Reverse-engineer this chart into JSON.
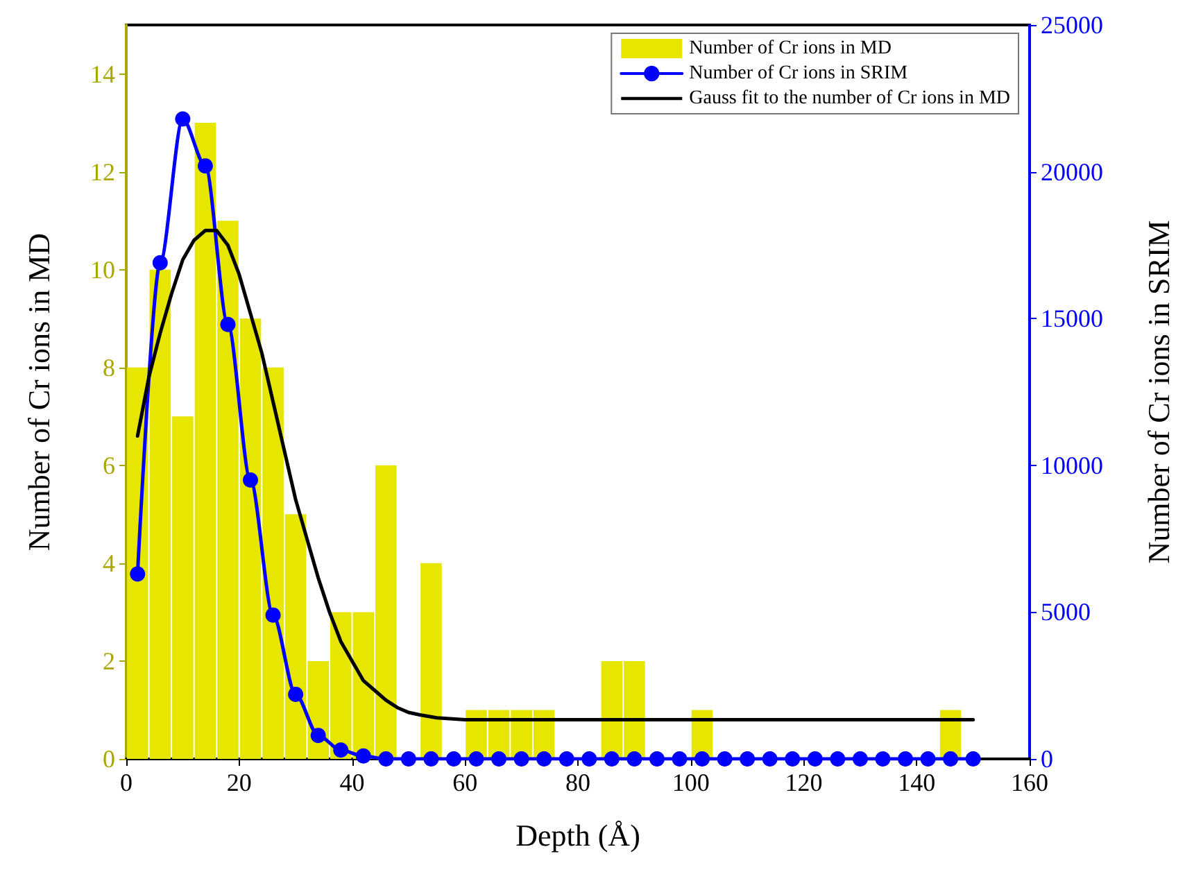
{
  "chart_data": {
    "type": "histogram",
    "xlabel": "Depth (Å)",
    "ylabel": "Number of Cr ions in MD",
    "y2label": "Number of Cr ions in SRIM",
    "bins": [
      0,
      4,
      8,
      12,
      16,
      20,
      24,
      28,
      32,
      36,
      40,
      44,
      48,
      52,
      56,
      60,
      64,
      68,
      72,
      76,
      80,
      84,
      88,
      92,
      96,
      100,
      104,
      108,
      112,
      116,
      120,
      124,
      128,
      132,
      136,
      140,
      144,
      148
    ],
    "series": [
      {
        "name": "Number of Cr ions in MD",
        "color": "#e6e600",
        "values": [
          8,
          10,
          7,
          13,
          11,
          9,
          8,
          5,
          2,
          3,
          3,
          6,
          null,
          4,
          null,
          1,
          1,
          1,
          1,
          null,
          null,
          2,
          2,
          null,
          null,
          1,
          null,
          null,
          null,
          null,
          null,
          null,
          null,
          null,
          null,
          null,
          1
        ]
      },
      {
        "name": "Number of Cr ions in SRIM",
        "type": "line",
        "axis": "y2",
        "color": "#0000ff",
        "marker": "circle",
        "x": [
          2,
          6,
          10,
          14,
          18,
          22,
          26,
          30,
          34,
          38,
          42,
          46,
          50,
          54,
          58,
          62,
          66,
          70,
          74,
          78,
          82,
          86,
          90,
          94,
          98,
          102,
          106,
          110,
          114,
          118,
          122,
          126,
          130,
          134,
          138,
          142,
          146,
          150
        ],
        "values": [
          6300,
          16900,
          21800,
          20200,
          14800,
          9500,
          4900,
          2200,
          800,
          300,
          100,
          0,
          0,
          0,
          0,
          0,
          0,
          0,
          0,
          0,
          0,
          0,
          0,
          0,
          0,
          0,
          0,
          0,
          0,
          0,
          0,
          0,
          0,
          0,
          0,
          0,
          0,
          0
        ]
      },
      {
        "name": "Gauss fit to the number of Cr ions in MD",
        "type": "line",
        "color": "#000000",
        "marker": "none",
        "x": [
          2,
          4,
          6,
          8,
          10,
          12,
          14,
          16,
          18,
          20,
          22,
          24,
          26,
          28,
          30,
          32,
          34,
          36,
          38,
          40,
          42,
          44,
          46,
          48,
          50,
          52,
          55,
          60,
          80,
          100,
          120,
          150
        ],
        "values": [
          6.6,
          7.8,
          8.7,
          9.5,
          10.2,
          10.6,
          10.8,
          10.8,
          10.5,
          9.9,
          9.1,
          8.3,
          7.3,
          6.3,
          5.3,
          4.5,
          3.7,
          3.0,
          2.4,
          2.0,
          1.6,
          1.4,
          1.2,
          1.05,
          0.95,
          0.9,
          0.84,
          0.8,
          0.8,
          0.8,
          0.8,
          0.8
        ]
      }
    ],
    "xlim": [
      0,
      160
    ],
    "xticks": [
      0,
      20,
      40,
      60,
      80,
      100,
      120,
      140,
      160
    ],
    "ylim": [
      0,
      15
    ],
    "yticks": [
      0,
      2,
      4,
      6,
      8,
      10,
      12,
      14
    ],
    "y2lim": [
      0,
      25000
    ],
    "y2ticks": [
      0,
      5000,
      10000,
      15000,
      20000,
      25000
    ],
    "legend": "top right"
  }
}
